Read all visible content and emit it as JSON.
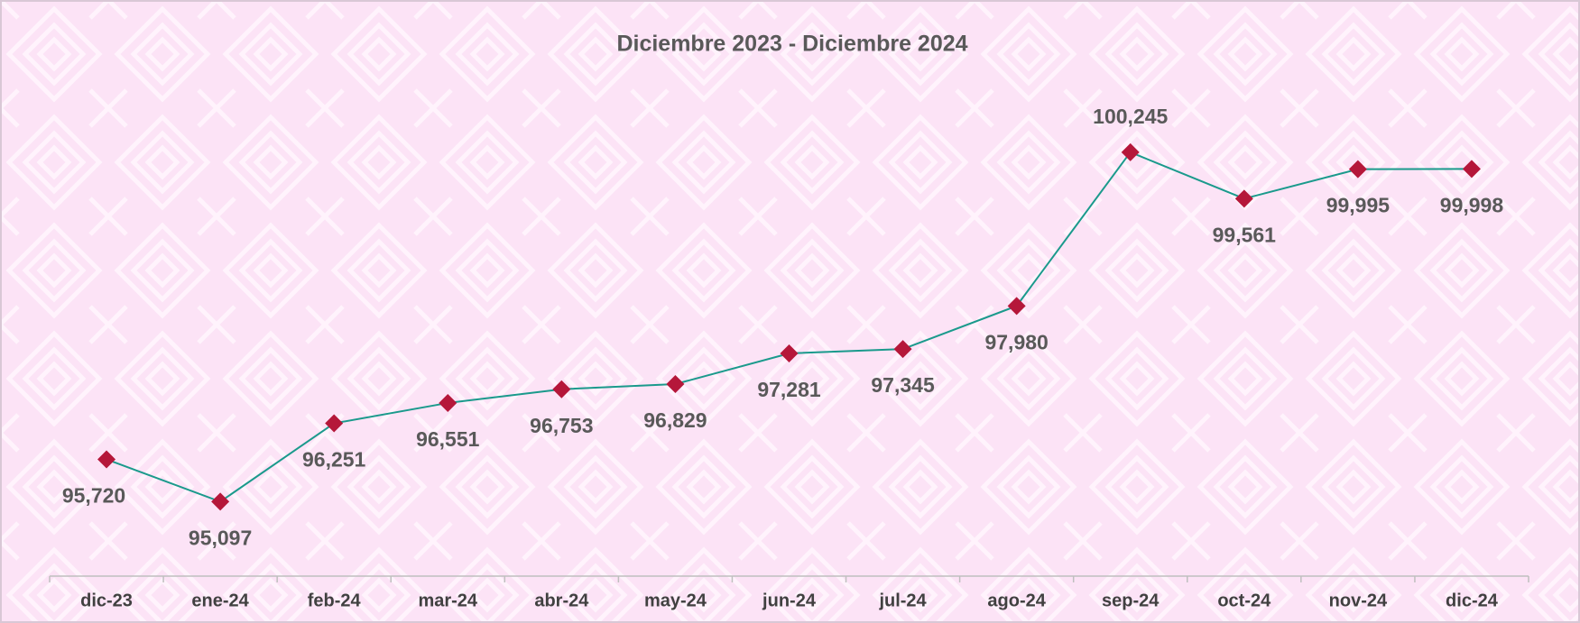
{
  "chart_data": {
    "type": "line",
    "title": "Diciembre 2023 - Diciembre 2024",
    "categories": [
      "dic-23",
      "ene-24",
      "feb-24",
      "mar-24",
      "abr-24",
      "may-24",
      "jun-24",
      "jul-24",
      "ago-24",
      "sep-24",
      "oct-24",
      "nov-24",
      "dic-24"
    ],
    "series": [
      {
        "color": "#1a9a8c",
        "marker_color": "#b5173a",
        "values": [
          95720,
          95097,
          96251,
          96551,
          96753,
          96829,
          97281,
          97345,
          97980,
          100245,
          99561,
          99995,
          99998
        ],
        "value_labels": [
          "95,720",
          "95,097",
          "96,251",
          "96,551",
          "96,753",
          "96,829",
          "97,281",
          "97,345",
          "97,980",
          "100,245",
          "99,561",
          "99,995",
          "99,998"
        ]
      }
    ],
    "ylim": [
      94000,
      101000
    ]
  }
}
